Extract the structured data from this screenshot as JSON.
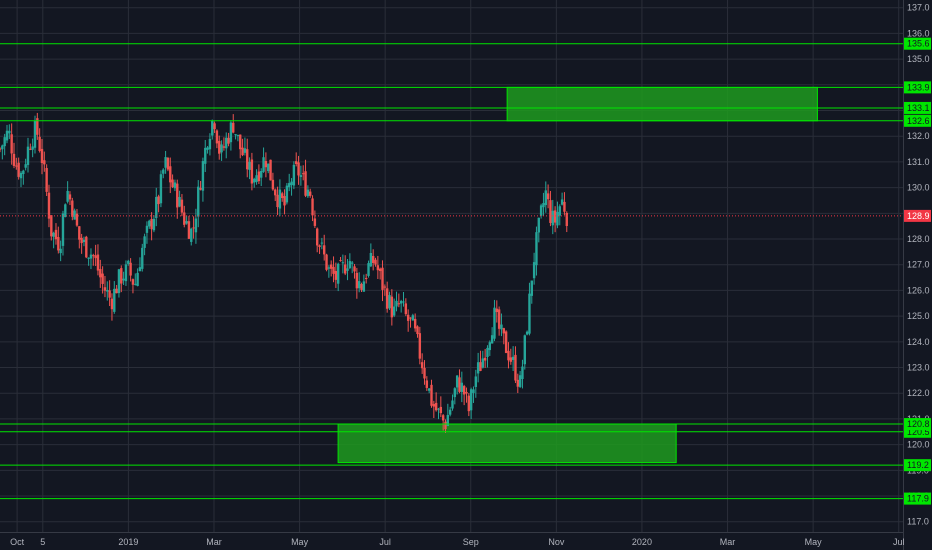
{
  "chart_data": {
    "type": "candlestick",
    "theme": {
      "background": "#131722",
      "grid": "#2a2e39",
      "up": "#26a69a",
      "down": "#ef5350",
      "level_line": "#00e600",
      "zone_fill": "#1f9a1f",
      "price_line": "#f23645",
      "axis_text": "#b2b5be"
    },
    "y_axis": {
      "ylim": [
        116.6,
        137.3
      ],
      "ticks": [
        "117.0",
        "118.0",
        "119.0",
        "120.0",
        "121.0",
        "122.0",
        "123.0",
        "124.0",
        "125.0",
        "126.0",
        "127.0",
        "128.0",
        "129.0",
        "130.0",
        "131.0",
        "132.0",
        "133.0",
        "134.0",
        "135.0",
        "136.0",
        "137.0"
      ]
    },
    "x_axis": {
      "ticks": [
        {
          "t": 0.4,
          "label": "Oct"
        },
        {
          "t": 1.0,
          "label": "5"
        },
        {
          "t": 3.0,
          "label": "2019"
        },
        {
          "t": 5.0,
          "label": "Mar"
        },
        {
          "t": 7.0,
          "label": "May"
        },
        {
          "t": 9.0,
          "label": "Jul"
        },
        {
          "t": 11.0,
          "label": "Sep"
        },
        {
          "t": 13.0,
          "label": "Nov"
        },
        {
          "t": 15.0,
          "label": "2020"
        },
        {
          "t": 17.0,
          "label": "Mar"
        },
        {
          "t": 19.0,
          "label": "May"
        },
        {
          "t": 21.0,
          "label": "Jul"
        }
      ],
      "t_range": [
        0.0,
        21.1
      ]
    },
    "levels": [
      {
        "value": 117.9,
        "label": "117.9"
      },
      {
        "value": 119.2,
        "label": "119.2"
      },
      {
        "value": 120.5,
        "label": "120.5"
      },
      {
        "value": 120.8,
        "label": "120.8"
      },
      {
        "value": 132.6,
        "label": "132.6"
      },
      {
        "value": 133.1,
        "label": "133.1"
      },
      {
        "value": 133.9,
        "label": "133.9"
      },
      {
        "value": 135.6,
        "label": "135.6"
      }
    ],
    "zones": [
      {
        "t_start": 11.85,
        "t_end": 19.1,
        "low": 132.6,
        "high": 133.9
      },
      {
        "t_start": 7.9,
        "t_end": 15.8,
        "low": 119.3,
        "high": 120.8
      }
    ],
    "last_price": {
      "value": 128.9,
      "label": "128.9"
    },
    "close_path": [
      [
        0.0,
        131.5
      ],
      [
        0.2,
        132.2
      ],
      [
        0.35,
        131.0
      ],
      [
        0.5,
        130.5
      ],
      [
        0.7,
        131.8
      ],
      [
        0.85,
        132.3
      ],
      [
        1.0,
        131.0
      ],
      [
        1.2,
        128.3
      ],
      [
        1.4,
        127.8
      ],
      [
        1.55,
        130.0
      ],
      [
        1.7,
        129.2
      ],
      [
        1.85,
        128.0
      ],
      [
        2.0,
        127.7
      ],
      [
        2.2,
        127.3
      ],
      [
        2.4,
        126.2
      ],
      [
        2.6,
        125.6
      ],
      [
        2.8,
        126.5
      ],
      [
        3.0,
        126.8
      ],
      [
        3.15,
        126.2
      ],
      [
        3.3,
        127.5
      ],
      [
        3.5,
        128.5
      ],
      [
        3.7,
        129.5
      ],
      [
        3.85,
        131.0
      ],
      [
        4.0,
        130.2
      ],
      [
        4.15,
        129.6
      ],
      [
        4.3,
        128.8
      ],
      [
        4.5,
        128.2
      ],
      [
        4.7,
        130.5
      ],
      [
        4.85,
        132.0
      ],
      [
        5.0,
        132.8
      ],
      [
        5.15,
        131.2
      ],
      [
        5.3,
        131.9
      ],
      [
        5.45,
        132.5
      ],
      [
        5.6,
        131.6
      ],
      [
        5.75,
        131.0
      ],
      [
        5.9,
        130.4
      ],
      [
        6.05,
        130.7
      ],
      [
        6.2,
        131.2
      ],
      [
        6.35,
        130.3
      ],
      [
        6.5,
        129.6
      ],
      [
        6.65,
        129.3
      ],
      [
        6.8,
        130.3
      ],
      [
        6.95,
        130.7
      ],
      [
        7.1,
        130.2
      ],
      [
        7.25,
        129.8
      ],
      [
        7.4,
        128.2
      ],
      [
        7.55,
        127.4
      ],
      [
        7.7,
        126.7
      ],
      [
        7.85,
        126.5
      ],
      [
        8.0,
        126.8
      ],
      [
        8.15,
        127.3
      ],
      [
        8.3,
        126.5
      ],
      [
        8.45,
        126.2
      ],
      [
        8.6,
        126.9
      ],
      [
        8.75,
        127.2
      ],
      [
        8.9,
        126.4
      ],
      [
        9.05,
        125.7
      ],
      [
        9.2,
        125.1
      ],
      [
        9.35,
        125.5
      ],
      [
        9.5,
        124.9
      ],
      [
        9.65,
        124.6
      ],
      [
        9.8,
        123.6
      ],
      [
        9.95,
        122.6
      ],
      [
        10.1,
        121.6
      ],
      [
        10.25,
        121.2
      ],
      [
        10.4,
        120.8
      ],
      [
        10.55,
        121.6
      ],
      [
        10.7,
        122.5
      ],
      [
        10.85,
        122.0
      ],
      [
        10.95,
        121.3
      ],
      [
        11.1,
        122.6
      ],
      [
        11.25,
        123.2
      ],
      [
        11.4,
        124.1
      ],
      [
        11.55,
        125.0
      ],
      [
        11.7,
        124.3
      ],
      [
        11.85,
        123.7
      ],
      [
        12.0,
        123.1
      ],
      [
        12.15,
        122.3
      ],
      [
        12.25,
        123.7
      ],
      [
        12.35,
        125.2
      ],
      [
        12.45,
        127.0
      ],
      [
        12.55,
        128.0
      ],
      [
        12.65,
        129.0
      ],
      [
        12.75,
        129.8
      ],
      [
        12.85,
        129.0
      ],
      [
        12.95,
        128.6
      ],
      [
        13.05,
        129.2
      ],
      [
        13.15,
        129.5
      ],
      [
        13.25,
        128.9
      ]
    ]
  }
}
